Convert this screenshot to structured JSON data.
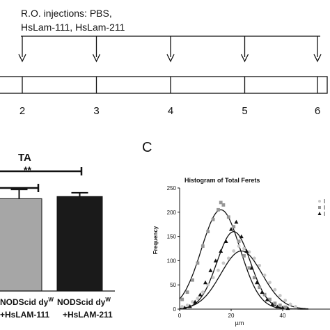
{
  "timeline": {
    "heading_line1": "R.O. injections: PBS,",
    "heading_line2": "HsLam-111, HsLam-211",
    "ticks": [
      "2",
      "3",
      "4",
      "5",
      "6"
    ],
    "injection_ticks": [
      2,
      3,
      4,
      5,
      6
    ]
  },
  "panel_b": {
    "title": "TA",
    "significance": "**",
    "bars": [
      {
        "label_line1": "NODScid dy",
        "label_sup": "W",
        "label_line2": "+HsLAM-111",
        "value": 170,
        "error": 17,
        "color": "#a6a6a6"
      },
      {
        "label_line1": "NODScid dy",
        "label_sup": "W",
        "label_line2": "+HsLAM-211",
        "value": 174,
        "error": 7,
        "color": "#1a1a1a"
      }
    ]
  },
  "panel_c": {
    "letter": "C",
    "chart_data": {
      "type": "scatter",
      "title": "Histogram of Total Ferets",
      "xlabel": "µm",
      "ylabel": "Frequency",
      "xlim": [
        0,
        50
      ],
      "ylim": [
        0,
        250
      ],
      "x_ticks": [
        "0",
        "20",
        "40"
      ],
      "y_ticks": [
        "0",
        "50",
        "100",
        "150",
        "200",
        "250"
      ],
      "legend_labels": [
        "I",
        "I",
        "I"
      ],
      "series": [
        {
          "marker": "circle",
          "color": "#c8c8c8",
          "x": [
            1,
            3,
            5,
            7,
            9,
            11,
            13,
            15,
            17,
            19,
            21,
            23,
            25,
            27,
            29,
            31,
            33,
            35,
            37,
            39,
            41,
            43,
            45
          ],
          "y": [
            5,
            8,
            15,
            22,
            35,
            50,
            65,
            80,
            95,
            105,
            120,
            130,
            125,
            118,
            105,
            90,
            70,
            55,
            40,
            28,
            18,
            10,
            5
          ],
          "fit_peak": 120,
          "fit_mean": 24,
          "fit_sd": 8
        },
        {
          "marker": "square",
          "color": "#969696",
          "x": [
            1,
            3,
            5,
            7,
            9,
            11,
            13,
            15,
            16,
            17,
            19,
            21,
            23,
            25,
            27,
            29,
            31,
            33,
            35,
            37,
            39,
            41
          ],
          "y": [
            20,
            35,
            60,
            95,
            130,
            160,
            185,
            205,
            220,
            215,
            190,
            170,
            140,
            110,
            85,
            65,
            45,
            30,
            20,
            12,
            8,
            4
          ],
          "fit_peak": 205,
          "fit_mean": 16,
          "fit_sd": 7.5
        },
        {
          "marker": "triangle",
          "color": "#111111",
          "x": [
            2,
            4,
            6,
            8,
            10,
            12,
            14,
            16,
            18,
            20,
            22,
            24,
            26,
            28,
            30,
            32,
            34,
            36,
            38,
            40,
            42
          ],
          "y": [
            3,
            6,
            15,
            30,
            55,
            80,
            100,
            120,
            140,
            165,
            180,
            150,
            120,
            85,
            55,
            35,
            20,
            10,
            5,
            3,
            2
          ],
          "fit_peak": 160,
          "fit_mean": 21,
          "fit_sd": 6.5
        }
      ]
    }
  }
}
